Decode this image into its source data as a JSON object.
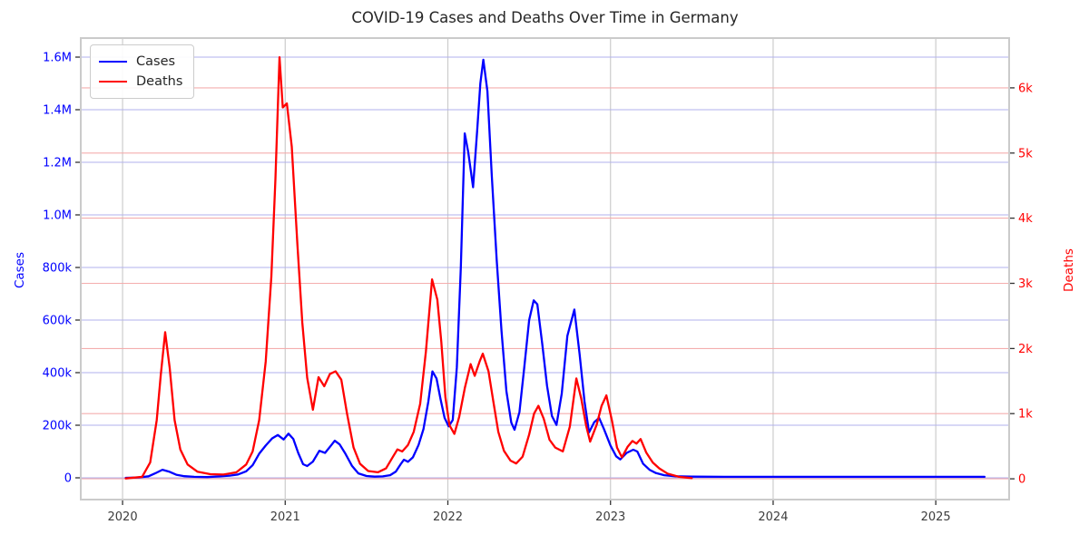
{
  "chart_data": {
    "type": "line",
    "title": "COVID-19 Cases and Deaths Over Time in Germany",
    "grid": true,
    "background_color": "#ffffff",
    "plot_border_color": "#cbcbcb",
    "legend": {
      "position": "upper left",
      "items": [
        "Cases",
        "Deaths"
      ]
    },
    "x_axis": {
      "label": "",
      "ticks": [
        2020,
        2021,
        2022,
        2023,
        2024,
        2025
      ],
      "tick_labels": [
        "2020",
        "2021",
        "2022",
        "2023",
        "2024",
        "2025"
      ],
      "range": [
        2019.743,
        2025.451
      ],
      "tick_label_color": "#3d3d3d",
      "gridline_color": "#cccccc"
    },
    "y_left": {
      "label": "Cases",
      "color": "#0000ff",
      "ticks": [
        0,
        200000,
        400000,
        600000,
        800000,
        1000000,
        1200000,
        1400000,
        1600000
      ],
      "tick_labels": [
        "0",
        "200k",
        "400k",
        "600k",
        "800k",
        "1.0M",
        "1.2M",
        "1.4M",
        "1.6M"
      ],
      "range": [
        -82600,
        1672300
      ],
      "gridline_color": "#b2b2ec"
    },
    "y_right": {
      "label": "Deaths",
      "color": "#ff0000",
      "ticks": [
        0,
        1000,
        2000,
        3000,
        4000,
        5000,
        6000
      ],
      "tick_labels": [
        "0",
        "1k",
        "2k",
        "3k",
        "4k",
        "5k",
        "6k"
      ],
      "range": [
        -319,
        6764
      ],
      "gridline_color": "#f4aaaa"
    },
    "series": [
      {
        "name": "Cases",
        "axis": "left",
        "color": "#0000ff",
        "points": [
          [
            2020.02,
            300
          ],
          [
            2020.1,
            1500
          ],
          [
            2020.16,
            6000
          ],
          [
            2020.2,
            17000
          ],
          [
            2020.245,
            31000
          ],
          [
            2020.285,
            24000
          ],
          [
            2020.33,
            12000
          ],
          [
            2020.38,
            6500
          ],
          [
            2020.44,
            3800
          ],
          [
            2020.52,
            3000
          ],
          [
            2020.6,
            5500
          ],
          [
            2020.66,
            8500
          ],
          [
            2020.71,
            13000
          ],
          [
            2020.76,
            25000
          ],
          [
            2020.8,
            48000
          ],
          [
            2020.84,
            92000
          ],
          [
            2020.88,
            123000
          ],
          [
            2020.92,
            150000
          ],
          [
            2020.955,
            163000
          ],
          [
            2020.99,
            146000
          ],
          [
            2021.02,
            168000
          ],
          [
            2021.05,
            148000
          ],
          [
            2021.08,
            95000
          ],
          [
            2021.11,
            52000
          ],
          [
            2021.135,
            45000
          ],
          [
            2021.17,
            62000
          ],
          [
            2021.21,
            103000
          ],
          [
            2021.245,
            95000
          ],
          [
            2021.28,
            122000
          ],
          [
            2021.305,
            141000
          ],
          [
            2021.335,
            127000
          ],
          [
            2021.37,
            92000
          ],
          [
            2021.41,
            46000
          ],
          [
            2021.45,
            17000
          ],
          [
            2021.5,
            7000
          ],
          [
            2021.55,
            4500
          ],
          [
            2021.6,
            5500
          ],
          [
            2021.645,
            10000
          ],
          [
            2021.68,
            24000
          ],
          [
            2021.71,
            52000
          ],
          [
            2021.73,
            69000
          ],
          [
            2021.755,
            61000
          ],
          [
            2021.785,
            78000
          ],
          [
            2021.82,
            125000
          ],
          [
            2021.85,
            185000
          ],
          [
            2021.88,
            290000
          ],
          [
            2021.905,
            405000
          ],
          [
            2021.93,
            378000
          ],
          [
            2021.955,
            300000
          ],
          [
            2021.98,
            228000
          ],
          [
            2022.005,
            196000
          ],
          [
            2022.03,
            220000
          ],
          [
            2022.055,
            420000
          ],
          [
            2022.08,
            800000
          ],
          [
            2022.104,
            1310000
          ],
          [
            2022.125,
            1240000
          ],
          [
            2022.155,
            1105000
          ],
          [
            2022.18,
            1320000
          ],
          [
            2022.2,
            1500000
          ],
          [
            2022.218,
            1590000
          ],
          [
            2022.243,
            1470000
          ],
          [
            2022.27,
            1150000
          ],
          [
            2022.3,
            830000
          ],
          [
            2022.33,
            560000
          ],
          [
            2022.36,
            330000
          ],
          [
            2022.39,
            210000
          ],
          [
            2022.41,
            183000
          ],
          [
            2022.44,
            250000
          ],
          [
            2022.47,
            420000
          ],
          [
            2022.5,
            600000
          ],
          [
            2022.528,
            675000
          ],
          [
            2022.55,
            660000
          ],
          [
            2022.58,
            510000
          ],
          [
            2022.61,
            350000
          ],
          [
            2022.64,
            235000
          ],
          [
            2022.668,
            201000
          ],
          [
            2022.7,
            320000
          ],
          [
            2022.735,
            540000
          ],
          [
            2022.778,
            640000
          ],
          [
            2022.81,
            470000
          ],
          [
            2022.84,
            290000
          ],
          [
            2022.868,
            173000
          ],
          [
            2022.9,
            212000
          ],
          [
            2022.93,
            228000
          ],
          [
            2022.96,
            185000
          ],
          [
            2023.0,
            123000
          ],
          [
            2023.035,
            82000
          ],
          [
            2023.06,
            70000
          ],
          [
            2023.1,
            95000
          ],
          [
            2023.14,
            107000
          ],
          [
            2023.165,
            100000
          ],
          [
            2023.2,
            54000
          ],
          [
            2023.24,
            31000
          ],
          [
            2023.28,
            18000
          ],
          [
            2023.33,
            10000
          ],
          [
            2023.4,
            6000
          ],
          [
            2023.5,
            4500
          ],
          [
            2023.7,
            4000
          ],
          [
            2024.0,
            4000
          ],
          [
            2024.5,
            4000
          ],
          [
            2025.0,
            4000
          ],
          [
            2025.3,
            4000
          ]
        ]
      },
      {
        "name": "Deaths",
        "axis": "right",
        "color": "#ff0000",
        "points": [
          [
            2020.02,
            5
          ],
          [
            2020.12,
            30
          ],
          [
            2020.17,
            250
          ],
          [
            2020.21,
            900
          ],
          [
            2020.235,
            1600
          ],
          [
            2020.262,
            2250
          ],
          [
            2020.29,
            1700
          ],
          [
            2020.32,
            900
          ],
          [
            2020.355,
            450
          ],
          [
            2020.4,
            220
          ],
          [
            2020.46,
            110
          ],
          [
            2020.54,
            70
          ],
          [
            2020.62,
            65
          ],
          [
            2020.7,
            100
          ],
          [
            2020.76,
            220
          ],
          [
            2020.8,
            420
          ],
          [
            2020.84,
            900
          ],
          [
            2020.88,
            1800
          ],
          [
            2020.915,
            3100
          ],
          [
            2020.94,
            4600
          ],
          [
            2020.965,
            6470
          ],
          [
            2020.985,
            5700
          ],
          [
            2021.01,
            5760
          ],
          [
            2021.04,
            5100
          ],
          [
            2021.075,
            3600
          ],
          [
            2021.105,
            2400
          ],
          [
            2021.135,
            1550
          ],
          [
            2021.17,
            1060
          ],
          [
            2021.205,
            1560
          ],
          [
            2021.24,
            1420
          ],
          [
            2021.275,
            1610
          ],
          [
            2021.31,
            1650
          ],
          [
            2021.345,
            1520
          ],
          [
            2021.38,
            1000
          ],
          [
            2021.42,
            480
          ],
          [
            2021.46,
            230
          ],
          [
            2021.51,
            120
          ],
          [
            2021.57,
            100
          ],
          [
            2021.62,
            160
          ],
          [
            2021.66,
            330
          ],
          [
            2021.69,
            450
          ],
          [
            2021.72,
            420
          ],
          [
            2021.755,
            520
          ],
          [
            2021.79,
            720
          ],
          [
            2021.83,
            1150
          ],
          [
            2021.865,
            1950
          ],
          [
            2021.903,
            3060
          ],
          [
            2021.935,
            2750
          ],
          [
            2021.96,
            2100
          ],
          [
            2021.985,
            1250
          ],
          [
            2022.01,
            820
          ],
          [
            2022.04,
            690
          ],
          [
            2022.07,
            950
          ],
          [
            2022.105,
            1400
          ],
          [
            2022.14,
            1760
          ],
          [
            2022.165,
            1580
          ],
          [
            2022.195,
            1800
          ],
          [
            2022.215,
            1920
          ],
          [
            2022.25,
            1650
          ],
          [
            2022.28,
            1180
          ],
          [
            2022.31,
            720
          ],
          [
            2022.345,
            430
          ],
          [
            2022.385,
            280
          ],
          [
            2022.42,
            235
          ],
          [
            2022.46,
            340
          ],
          [
            2022.5,
            680
          ],
          [
            2022.53,
            1000
          ],
          [
            2022.557,
            1120
          ],
          [
            2022.59,
            920
          ],
          [
            2022.625,
            600
          ],
          [
            2022.66,
            480
          ],
          [
            2022.707,
            420
          ],
          [
            2022.75,
            800
          ],
          [
            2022.79,
            1540
          ],
          [
            2022.82,
            1230
          ],
          [
            2022.85,
            820
          ],
          [
            2022.875,
            570
          ],
          [
            2022.915,
            830
          ],
          [
            2022.945,
            1120
          ],
          [
            2022.975,
            1280
          ],
          [
            2023.01,
            880
          ],
          [
            2023.04,
            480
          ],
          [
            2023.07,
            330
          ],
          [
            2023.105,
            490
          ],
          [
            2023.135,
            580
          ],
          [
            2023.16,
            540
          ],
          [
            2023.185,
            610
          ],
          [
            2023.22,
            400
          ],
          [
            2023.26,
            250
          ],
          [
            2023.3,
            160
          ],
          [
            2023.35,
            80
          ],
          [
            2023.42,
            30
          ],
          [
            2023.5,
            10
          ]
        ]
      }
    ]
  }
}
